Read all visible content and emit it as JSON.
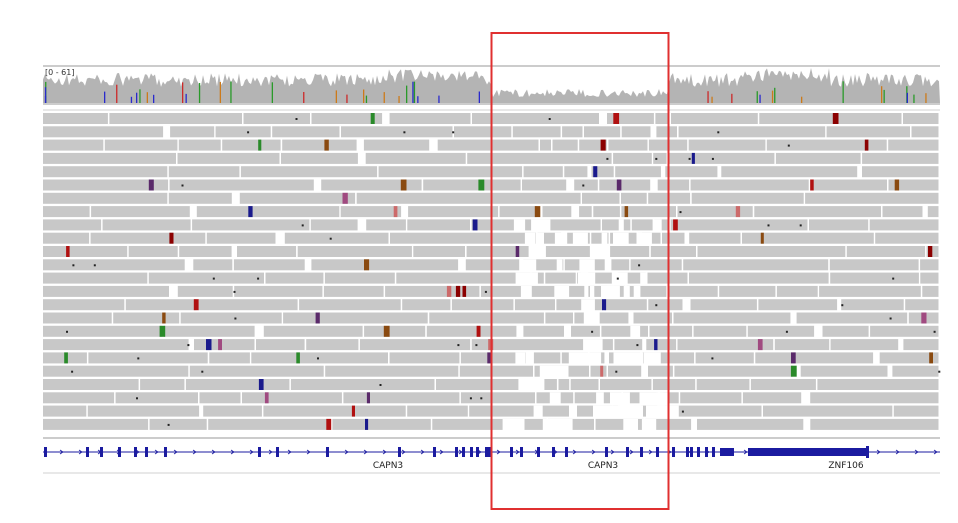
{
  "coverage_track": {
    "range_label": "[0 - 61]"
  },
  "gene_track": {
    "genes": [
      {
        "name": "CAPN3"
      },
      {
        "name": "CAPN3"
      },
      {
        "name": "ZNF106"
      }
    ]
  },
  "colors": {
    "read_fill": "#c8c8c8",
    "read_border": "#ffffff",
    "coverage_fill": "#b4b4b4",
    "gene_color": "#1b1ba0",
    "highlight_box": "#e03030",
    "mismatch_colors": [
      "#8b0000",
      "#b01010",
      "#1a1a8c",
      "#5a2a6a",
      "#a04a80",
      "#cc6a6a",
      "#2a8a2a",
      "#8a4a10"
    ]
  },
  "highlight": {
    "label": ""
  }
}
